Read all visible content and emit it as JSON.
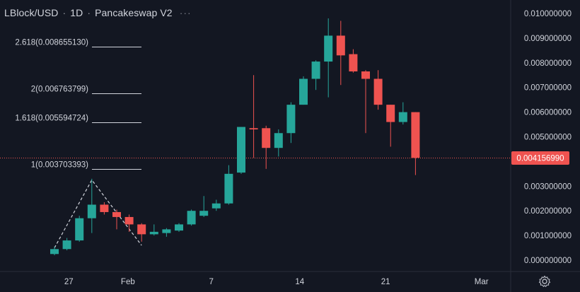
{
  "header": {
    "symbol": "LBlock/USD",
    "interval": "1D",
    "exchange": "Pancakeswap V2",
    "more_icon": "···"
  },
  "icons": {
    "settings": "gear-icon",
    "more": "ellipsis-icon"
  },
  "colors": {
    "background": "#131722",
    "up": "#26a69a",
    "down": "#ef5350",
    "fib_line": "#d1d4dc",
    "price_line": "#ef5350",
    "price_tag_bg": "#ef5350",
    "axis_text": "#d1d4dc",
    "divider": "#2a2e39"
  },
  "chart_data": {
    "type": "candlestick",
    "title": "",
    "ylim": [
      -0.0001,
      0.0103
    ],
    "xlim": [
      0.3,
      36
    ],
    "y_ticks": [
      {
        "value": 0.01,
        "label": "0.010000000"
      },
      {
        "value": 0.009,
        "label": "0.009000000"
      },
      {
        "value": 0.008,
        "label": "0.008000000"
      },
      {
        "value": 0.007,
        "label": "0.007000000"
      },
      {
        "value": 0.006,
        "label": "0.006000000"
      },
      {
        "value": 0.005,
        "label": "0.005000000"
      },
      {
        "value": 0.003,
        "label": "0.003000000"
      },
      {
        "value": 0.002,
        "label": "0.002000000"
      },
      {
        "value": 0.001,
        "label": "0.001000000"
      },
      {
        "value": 0.0,
        "label": "0.000000000"
      }
    ],
    "x_ticks": [
      {
        "x": 1.15,
        "label": "27"
      },
      {
        "x": 5.9,
        "label": "Feb"
      },
      {
        "x": 12.6,
        "label": "7"
      },
      {
        "x": 19.7,
        "label": "14"
      },
      {
        "x": 26.6,
        "label": "21"
      },
      {
        "x": 34.3,
        "label": "Mar"
      }
    ],
    "candles": [
      {
        "x": 0.0,
        "o": 0.00025,
        "h": 0.00055,
        "l": 0.0002,
        "c": 0.00045
      },
      {
        "x": 1.0,
        "o": 0.00045,
        "h": 0.0009,
        "l": 0.0004,
        "c": 0.0008
      },
      {
        "x": 2.0,
        "o": 0.0008,
        "h": 0.0018,
        "l": 0.00075,
        "c": 0.0017
      },
      {
        "x": 3.0,
        "o": 0.0017,
        "h": 0.0033,
        "l": 0.0011,
        "c": 0.00225
      },
      {
        "x": 4.0,
        "o": 0.00225,
        "h": 0.00235,
        "l": 0.00185,
        "c": 0.00195
      },
      {
        "x": 5.0,
        "o": 0.00195,
        "h": 0.00205,
        "l": 0.00125,
        "c": 0.00175
      },
      {
        "x": 6.0,
        "o": 0.00175,
        "h": 0.00185,
        "l": 0.00115,
        "c": 0.00145
      },
      {
        "x": 7.0,
        "o": 0.00145,
        "h": 0.0015,
        "l": 0.00075,
        "c": 0.00105
      },
      {
        "x": 8.0,
        "o": 0.00105,
        "h": 0.00145,
        "l": 0.001,
        "c": 0.00115
      },
      {
        "x": 9.0,
        "o": 0.0011,
        "h": 0.0013,
        "l": 0.00095,
        "c": 0.00125
      },
      {
        "x": 10.0,
        "o": 0.0012,
        "h": 0.0015,
        "l": 0.00115,
        "c": 0.00145
      },
      {
        "x": 11.0,
        "o": 0.00145,
        "h": 0.00205,
        "l": 0.0014,
        "c": 0.002
      },
      {
        "x": 12.0,
        "o": 0.0018,
        "h": 0.0026,
        "l": 0.00175,
        "c": 0.002
      },
      {
        "x": 13.0,
        "o": 0.0021,
        "h": 0.00245,
        "l": 0.002,
        "c": 0.0023
      },
      {
        "x": 14.0,
        "o": 0.0023,
        "h": 0.00385,
        "l": 0.00225,
        "c": 0.0035
      },
      {
        "x": 15.0,
        "o": 0.00355,
        "h": 0.0054,
        "l": 0.0035,
        "c": 0.0054
      },
      {
        "x": 16.0,
        "o": 0.00535,
        "h": 0.0075,
        "l": 0.00415,
        "c": 0.0053
      },
      {
        "x": 17.0,
        "o": 0.00535,
        "h": 0.00545,
        "l": 0.0037,
        "c": 0.00455
      },
      {
        "x": 18.0,
        "o": 0.00455,
        "h": 0.0053,
        "l": 0.0042,
        "c": 0.00515
      },
      {
        "x": 19.0,
        "o": 0.00515,
        "h": 0.0064,
        "l": 0.00475,
        "c": 0.0063
      },
      {
        "x": 20.0,
        "o": 0.0063,
        "h": 0.00745,
        "l": 0.0063,
        "c": 0.00735
      },
      {
        "x": 21.0,
        "o": 0.00735,
        "h": 0.0081,
        "l": 0.0069,
        "c": 0.00805
      },
      {
        "x": 22.0,
        "o": 0.00805,
        "h": 0.0098,
        "l": 0.0066,
        "c": 0.0091
      },
      {
        "x": 23.0,
        "o": 0.0091,
        "h": 0.0097,
        "l": 0.0071,
        "c": 0.0083
      },
      {
        "x": 24.0,
        "o": 0.00835,
        "h": 0.00855,
        "l": 0.0076,
        "c": 0.00765
      },
      {
        "x": 25.0,
        "o": 0.00765,
        "h": 0.0077,
        "l": 0.00515,
        "c": 0.00735
      },
      {
        "x": 26.0,
        "o": 0.00735,
        "h": 0.0077,
        "l": 0.0061,
        "c": 0.0063
      },
      {
        "x": 27.0,
        "o": 0.0063,
        "h": 0.0063,
        "l": 0.0046,
        "c": 0.0056
      },
      {
        "x": 28.0,
        "o": 0.0056,
        "h": 0.0064,
        "l": 0.0055,
        "c": 0.006
      },
      {
        "x": 29.0,
        "o": 0.006,
        "h": 0.006,
        "l": 0.00345,
        "c": 0.00415
      }
    ],
    "fib_levels": [
      {
        "label": "2.618(0.008655130)",
        "value": 0.00865513
      },
      {
        "label": "2(0.006763799)",
        "value": 0.006763799
      },
      {
        "label": "1.618(0.005594724)",
        "value": 0.005594724
      },
      {
        "label": "1(0.003703393)",
        "value": 0.003703393
      }
    ],
    "drawing_path": [
      {
        "x": 0.0,
        "y": 0.0005
      },
      {
        "x": 3.0,
        "y": 0.00325
      },
      {
        "x": 7.0,
        "y": 0.0006
      }
    ],
    "last_price": {
      "value": 0.00415699,
      "label": "0.004156990"
    }
  }
}
